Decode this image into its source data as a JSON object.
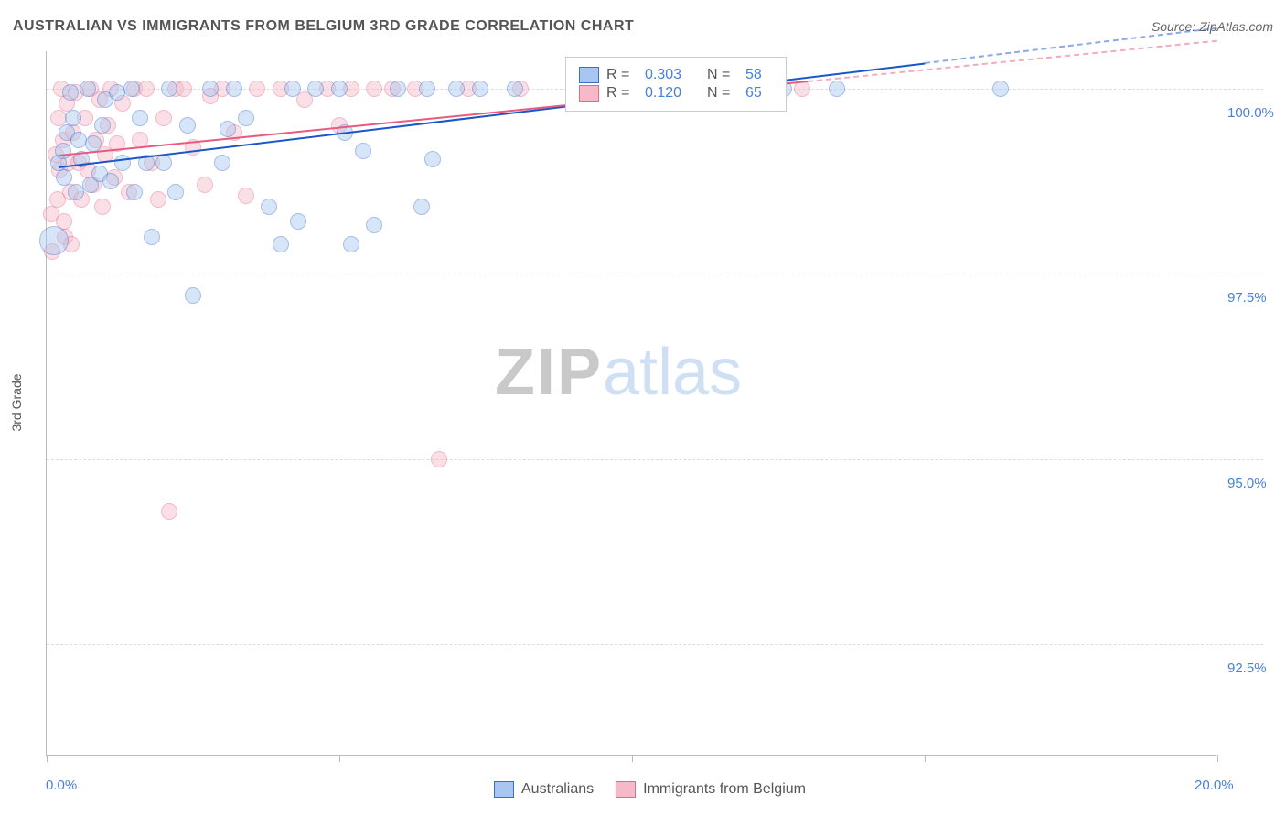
{
  "title": "AUSTRALIAN VS IMMIGRANTS FROM BELGIUM 3RD GRADE CORRELATION CHART",
  "source": "Source: ZipAtlas.com",
  "ylabel": "3rd Grade",
  "watermark_zip": "ZIP",
  "watermark_atlas": "atlas",
  "chart": {
    "type": "scatter",
    "background_color": "#ffffff",
    "grid_color": "#dddddd",
    "axis_color": "#bbbbbb",
    "tick_label_color": "#4a80d6",
    "axis_label_color": "#555555",
    "title_color": "#555555",
    "title_fontsize": 16,
    "tick_fontsize": 15,
    "label_fontsize": 14,
    "xlim": [
      0,
      20
    ],
    "ylim": [
      91.0,
      100.5
    ],
    "xticks": [
      0,
      5,
      10,
      15,
      20
    ],
    "xtick_labels": [
      "0.0%",
      "",
      "",
      "",
      "20.0%"
    ],
    "yticks": [
      92.5,
      95.0,
      97.5,
      100.0
    ],
    "ytick_labels": [
      "92.5%",
      "95.0%",
      "97.5%",
      "100.0%"
    ],
    "marker_radius": 9,
    "marker_opacity": 0.45,
    "marker_stroke_width": 1.2,
    "series": [
      {
        "name": "Australians",
        "legend_label": "Australians",
        "fill": "#a8c6f0",
        "stroke": "#3a6fc9",
        "line_color": "#1957c9",
        "R_label": "R =",
        "R": "0.303",
        "N_label": "N =",
        "N": "58",
        "trend": {
          "x0": 0.2,
          "y0": 98.95,
          "x1": 15.0,
          "y1": 100.35,
          "dashed_to_x": 20.0
        },
        "points": [
          [
            0.12,
            97.95,
            16
          ],
          [
            0.2,
            99.0,
            9
          ],
          [
            0.28,
            99.15,
            9
          ],
          [
            0.3,
            98.8,
            9
          ],
          [
            0.35,
            99.4,
            9
          ],
          [
            0.4,
            99.95,
            9
          ],
          [
            0.45,
            99.6,
            9
          ],
          [
            0.5,
            98.6,
            9
          ],
          [
            0.55,
            99.3,
            9
          ],
          [
            0.6,
            99.05,
            9
          ],
          [
            0.7,
            100.0,
            9
          ],
          [
            0.75,
            98.7,
            9
          ],
          [
            0.8,
            99.25,
            9
          ],
          [
            0.9,
            98.85,
            9
          ],
          [
            0.95,
            99.5,
            9
          ],
          [
            1.0,
            99.85,
            9
          ],
          [
            1.1,
            98.75,
            9
          ],
          [
            1.2,
            99.95,
            9
          ],
          [
            1.3,
            99.0,
            9
          ],
          [
            1.45,
            100.0,
            9
          ],
          [
            1.5,
            98.6,
            9
          ],
          [
            1.6,
            99.6,
            9
          ],
          [
            1.7,
            99.0,
            9
          ],
          [
            1.8,
            98.0,
            9
          ],
          [
            2.0,
            99.0,
            9
          ],
          [
            2.1,
            100.0,
            9
          ],
          [
            2.2,
            98.6,
            9
          ],
          [
            2.4,
            99.5,
            9
          ],
          [
            2.5,
            97.2,
            9
          ],
          [
            2.8,
            100.0,
            9
          ],
          [
            3.0,
            99.0,
            9
          ],
          [
            3.1,
            99.45,
            9
          ],
          [
            3.2,
            100.0,
            9
          ],
          [
            3.4,
            99.6,
            9
          ],
          [
            3.8,
            98.4,
            9
          ],
          [
            4.0,
            97.9,
            9
          ],
          [
            4.2,
            100.0,
            9
          ],
          [
            4.3,
            98.2,
            9
          ],
          [
            4.6,
            100.0,
            9
          ],
          [
            5.0,
            100.0,
            9
          ],
          [
            5.1,
            99.4,
            9
          ],
          [
            5.2,
            97.9,
            9
          ],
          [
            5.4,
            99.15,
            9
          ],
          [
            5.6,
            98.15,
            9
          ],
          [
            6.0,
            100.0,
            9
          ],
          [
            6.4,
            98.4,
            9
          ],
          [
            6.5,
            100.0,
            9
          ],
          [
            6.6,
            99.05,
            9
          ],
          [
            7.0,
            100.0,
            9
          ],
          [
            7.4,
            100.0,
            9
          ],
          [
            8.0,
            100.0,
            9
          ],
          [
            11.7,
            100.0,
            9
          ],
          [
            12.6,
            100.0,
            9
          ],
          [
            13.5,
            100.0,
            9
          ],
          [
            16.3,
            100.0,
            9
          ]
        ]
      },
      {
        "name": "Immigrants from Belgium",
        "legend_label": "Immigrants from Belgium",
        "fill": "#f5b9c8",
        "stroke": "#e36a8a",
        "line_color": "#e85a7f",
        "R_label": "R =",
        "R": "0.120",
        "N_label": "N =",
        "N": "65",
        "trend": {
          "x0": 0.2,
          "y0": 99.1,
          "x1": 13.0,
          "y1": 100.1,
          "dashed_to_x": 20.0
        },
        "points": [
          [
            0.08,
            98.3,
            9
          ],
          [
            0.1,
            97.8,
            9
          ],
          [
            0.15,
            99.1,
            9
          ],
          [
            0.18,
            98.5,
            9
          ],
          [
            0.2,
            99.6,
            9
          ],
          [
            0.22,
            98.9,
            9
          ],
          [
            0.25,
            100.0,
            9
          ],
          [
            0.28,
            99.3,
            9
          ],
          [
            0.3,
            98.2,
            9
          ],
          [
            0.32,
            98.0,
            9
          ],
          [
            0.35,
            99.8,
            9
          ],
          [
            0.38,
            99.0,
            9
          ],
          [
            0.4,
            98.6,
            9
          ],
          [
            0.42,
            97.9,
            9
          ],
          [
            0.45,
            99.4,
            9
          ],
          [
            0.5,
            99.95,
            9
          ],
          [
            0.55,
            99.0,
            9
          ],
          [
            0.6,
            98.5,
            9
          ],
          [
            0.65,
            99.6,
            9
          ],
          [
            0.7,
            98.9,
            9
          ],
          [
            0.75,
            100.0,
            9
          ],
          [
            0.8,
            98.7,
            9
          ],
          [
            0.85,
            99.3,
            9
          ],
          [
            0.9,
            99.85,
            9
          ],
          [
            0.95,
            98.4,
            9
          ],
          [
            1.0,
            99.1,
            9
          ],
          [
            1.05,
            99.5,
            9
          ],
          [
            1.1,
            100.0,
            9
          ],
          [
            1.15,
            98.8,
            9
          ],
          [
            1.2,
            99.25,
            9
          ],
          [
            1.3,
            99.8,
            9
          ],
          [
            1.4,
            98.6,
            9
          ],
          [
            1.5,
            100.0,
            9
          ],
          [
            1.6,
            99.3,
            9
          ],
          [
            1.7,
            100.0,
            9
          ],
          [
            1.8,
            99.0,
            9
          ],
          [
            1.9,
            98.5,
            9
          ],
          [
            2.0,
            99.6,
            9
          ],
          [
            2.1,
            94.3,
            9
          ],
          [
            2.2,
            100.0,
            9
          ],
          [
            2.35,
            100.0,
            9
          ],
          [
            2.5,
            99.2,
            9
          ],
          [
            2.7,
            98.7,
            9
          ],
          [
            2.8,
            99.9,
            9
          ],
          [
            3.0,
            100.0,
            9
          ],
          [
            3.2,
            99.4,
            9
          ],
          [
            3.4,
            98.55,
            9
          ],
          [
            3.6,
            100.0,
            9
          ],
          [
            4.0,
            100.0,
            9
          ],
          [
            4.4,
            99.85,
            9
          ],
          [
            4.8,
            100.0,
            9
          ],
          [
            5.0,
            99.5,
            9
          ],
          [
            5.2,
            100.0,
            9
          ],
          [
            5.6,
            100.0,
            9
          ],
          [
            5.9,
            100.0,
            9
          ],
          [
            6.3,
            100.0,
            9
          ],
          [
            6.7,
            95.0,
            9
          ],
          [
            7.2,
            100.0,
            9
          ],
          [
            8.1,
            100.0,
            9
          ],
          [
            12.9,
            100.0,
            9
          ]
        ]
      }
    ],
    "legend_bottom": {
      "items": [
        "Australians",
        "Immigrants from Belgium"
      ]
    }
  }
}
